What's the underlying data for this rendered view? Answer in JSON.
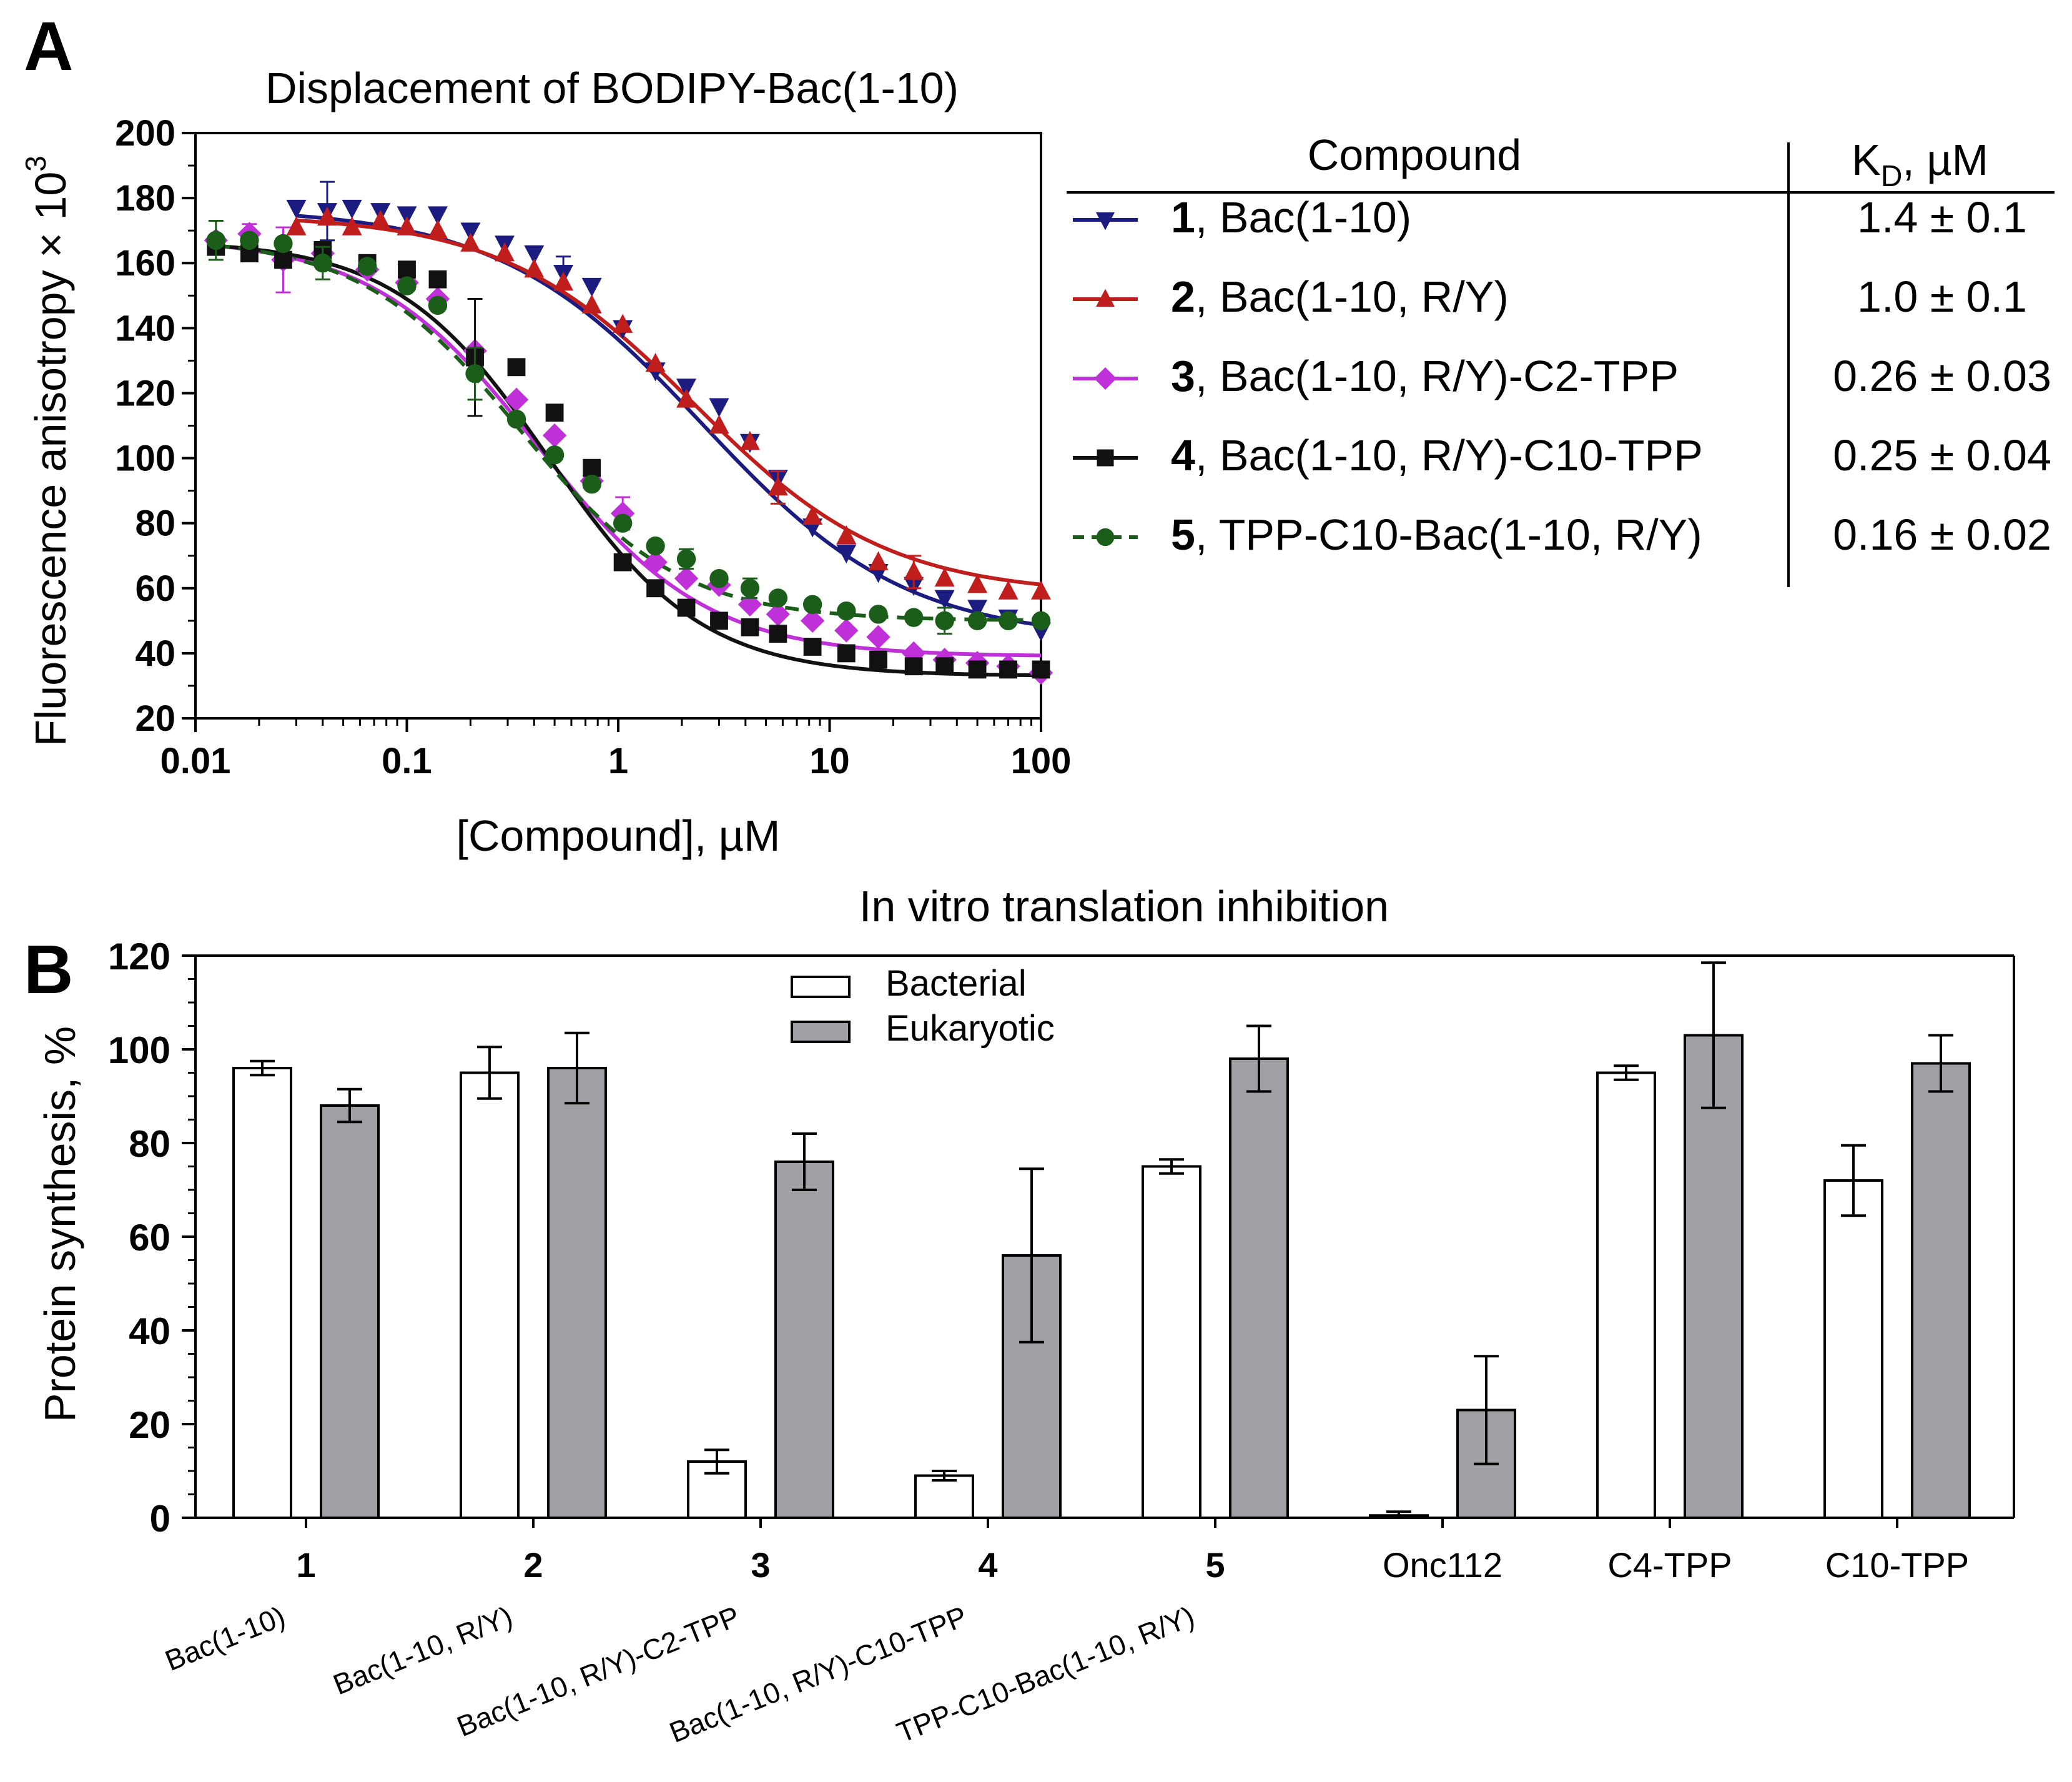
{
  "figure": {
    "panel_a_label": "A",
    "panel_b_label": "B",
    "table_header_compound": "Compound",
    "table_header_kd_main": "K",
    "table_header_kd_sub": "D",
    "table_header_kd_unit": ",  µM"
  },
  "chart_data": [
    {
      "type": "scatter",
      "title": "Displacement of BODIPY-Bac(1-10)",
      "xlabel": "[Compound], µM",
      "ylabel_main": "Fluorescence anisotropy × 10",
      "ylabel_exp": "3",
      "xscale": "log",
      "xlim": [
        0.01,
        100
      ],
      "ylim": [
        20,
        200
      ],
      "x_ticks": [
        0.01,
        0.1,
        1,
        10,
        100
      ],
      "x_tick_labels": [
        "0.01",
        "0.1",
        "1",
        "10",
        "100"
      ],
      "y_ticks": [
        20,
        40,
        60,
        80,
        100,
        120,
        140,
        160,
        180,
        200
      ],
      "y_tick_labels": [
        "20",
        "40",
        "60",
        "80",
        "100",
        "120",
        "140",
        "160",
        "180",
        "200"
      ],
      "series": [
        {
          "id": "1",
          "name": "Bac(1-10)",
          "kd": "1.4 ± 0.1",
          "color": "#1c1c80",
          "marker": "triangle-down",
          "line": "solid",
          "fit": {
            "top": 177,
            "bottom": 44,
            "ec50": 2.5,
            "hill": 0.9
          },
          "points": [
            [
              0.03,
              177,
              0
            ],
            [
              0.042,
              176,
              9
            ],
            [
              0.055,
              177,
              0
            ],
            [
              0.075,
              176,
              0
            ],
            [
              0.1,
              175,
              0
            ],
            [
              0.14,
              175,
              0
            ],
            [
              0.2,
              170,
              0
            ],
            [
              0.29,
              166,
              0
            ],
            [
              0.4,
              163,
              0
            ],
            [
              0.55,
              157,
              5
            ],
            [
              0.75,
              153,
              0
            ],
            [
              1.05,
              140,
              0
            ],
            [
              1.5,
              127,
              0
            ],
            [
              2.1,
              122,
              0
            ],
            [
              3,
              116,
              0
            ],
            [
              4.2,
              105,
              0
            ],
            [
              5.7,
              94,
              0
            ],
            [
              8.3,
              79,
              0
            ],
            [
              12,
              71,
              0
            ],
            [
              17,
              65,
              0
            ],
            [
              25,
              61,
              0
            ],
            [
              35,
              57,
              0
            ],
            [
              50,
              54,
              0
            ],
            [
              70,
              51,
              0
            ],
            [
              100,
              47,
              0
            ]
          ]
        },
        {
          "id": "2",
          "name": "Bac(1-10, R/Y)",
          "kd": "1.0 ± 0.1",
          "color": "#c01d1d",
          "marker": "triangle-up",
          "line": "solid",
          "fit": {
            "top": 175,
            "bottom": 58,
            "ec50": 2.3,
            "hill": 0.95
          },
          "points": [
            [
              0.03,
              171,
              0
            ],
            [
              0.042,
              174,
              0
            ],
            [
              0.055,
              171,
              0
            ],
            [
              0.075,
              173,
              0
            ],
            [
              0.1,
              171,
              0
            ],
            [
              0.14,
              170,
              0
            ],
            [
              0.2,
              166,
              0
            ],
            [
              0.29,
              163,
              0
            ],
            [
              0.4,
              158,
              0
            ],
            [
              0.55,
              154,
              0
            ],
            [
              0.75,
              147,
              0
            ],
            [
              1.05,
              141,
              0
            ],
            [
              1.5,
              129,
              0
            ],
            [
              2.1,
              118,
              0
            ],
            [
              3,
              110,
              0
            ],
            [
              4.2,
              105,
              0
            ],
            [
              5.7,
              91,
              5
            ],
            [
              8.3,
              82,
              0
            ],
            [
              12,
              76,
              0
            ],
            [
              17,
              68,
              0
            ],
            [
              25,
              65,
              5
            ],
            [
              35,
              63,
              0
            ],
            [
              50,
              61,
              0
            ],
            [
              70,
              59,
              0
            ],
            [
              100,
              59,
              0
            ]
          ]
        },
        {
          "id": "3",
          "name": "Bac(1-10, R/Y)-C2-TPP",
          "kd": "0.26 ± 0.03",
          "color": "#c030d8",
          "marker": "diamond",
          "line": "solid",
          "fit": {
            "top": 168,
            "bottom": 39,
            "ec50": 0.42,
            "hill": 1.1
          },
          "points": [
            [
              0.0125,
              167,
              0
            ],
            [
              0.018,
              169,
              3
            ],
            [
              0.026,
              161,
              10
            ],
            [
              0.04,
              163,
              0
            ],
            [
              0.065,
              158,
              0
            ],
            [
              0.1,
              154,
              0
            ],
            [
              0.14,
              149,
              0
            ],
            [
              0.21,
              133,
              0
            ],
            [
              0.33,
              118,
              0
            ],
            [
              0.5,
              107,
              0
            ],
            [
              0.75,
              93,
              0
            ],
            [
              1.05,
              83,
              5
            ],
            [
              1.5,
              68,
              0
            ],
            [
              2.1,
              63,
              0
            ],
            [
              3,
              61,
              0
            ],
            [
              4.2,
              55,
              0
            ],
            [
              5.7,
              52,
              0
            ],
            [
              8.3,
              50,
              0
            ],
            [
              12,
              47,
              0
            ],
            [
              17,
              45,
              0
            ],
            [
              25,
              40,
              0
            ],
            [
              35,
              38,
              0
            ],
            [
              50,
              37,
              0
            ],
            [
              70,
              36,
              0
            ],
            [
              100,
              34,
              0
            ]
          ]
        },
        {
          "id": "4",
          "name": "Bac(1-10, R/Y)-C10-TPP",
          "kd": "0.25 ± 0.04",
          "color": "#111111",
          "marker": "square",
          "line": "solid",
          "fit": {
            "top": 167,
            "bottom": 33,
            "ec50": 0.47,
            "hill": 1.2
          },
          "points": [
            [
              0.0125,
              165,
              0
            ],
            [
              0.018,
              163,
              0
            ],
            [
              0.026,
              161,
              0
            ],
            [
              0.04,
              164,
              0
            ],
            [
              0.065,
              160,
              0
            ],
            [
              0.1,
              158,
              0
            ],
            [
              0.14,
              155,
              0
            ],
            [
              0.21,
              131,
              18
            ],
            [
              0.33,
              128,
              0
            ],
            [
              0.5,
              114,
              0
            ],
            [
              0.75,
              97,
              0
            ],
            [
              1.05,
              68,
              0
            ],
            [
              1.5,
              60,
              0
            ],
            [
              2.1,
              54,
              0
            ],
            [
              3,
              50,
              0
            ],
            [
              4.2,
              48,
              0
            ],
            [
              5.7,
              46,
              0
            ],
            [
              8.3,
              42,
              0
            ],
            [
              12,
              40,
              0
            ],
            [
              17,
              38,
              0
            ],
            [
              25,
              36,
              0
            ],
            [
              35,
              36,
              0
            ],
            [
              50,
              35,
              0
            ],
            [
              70,
              35,
              0
            ],
            [
              100,
              35,
              0
            ]
          ]
        },
        {
          "id": "5",
          "name": "TPP-C10-Bac(1-10, R/Y)",
          "kd": "0.16 ± 0.02",
          "color": "#1a5e1a",
          "marker": "circle",
          "line": "dashed",
          "fit": {
            "top": 168,
            "bottom": 50,
            "ec50": 0.34,
            "hill": 1.15
          },
          "points": [
            [
              0.0125,
              167,
              6
            ],
            [
              0.018,
              167,
              0
            ],
            [
              0.026,
              166,
              0
            ],
            [
              0.04,
              160,
              5
            ],
            [
              0.065,
              159,
              0
            ],
            [
              0.1,
              153,
              0
            ],
            [
              0.14,
              147,
              0
            ],
            [
              0.21,
              126,
              8
            ],
            [
              0.33,
              112,
              0
            ],
            [
              0.5,
              101,
              0
            ],
            [
              0.75,
              92,
              0
            ],
            [
              1.05,
              80,
              0
            ],
            [
              1.5,
              73,
              0
            ],
            [
              2.1,
              69,
              3
            ],
            [
              3,
              63,
              0
            ],
            [
              4.2,
              60,
              3
            ],
            [
              5.7,
              57,
              0
            ],
            [
              8.3,
              55,
              0
            ],
            [
              12,
              53,
              0
            ],
            [
              17,
              52,
              0
            ],
            [
              25,
              51,
              0
            ],
            [
              35,
              50,
              4
            ],
            [
              50,
              50,
              0
            ],
            [
              70,
              50,
              0
            ],
            [
              100,
              50,
              0
            ]
          ]
        }
      ]
    },
    {
      "type": "bar",
      "title": "In vitro translation inhibition",
      "ylabel": "Protein synthesis, %",
      "ylim": [
        0,
        120
      ],
      "y_ticks": [
        0,
        20,
        40,
        60,
        80,
        100,
        120
      ],
      "y_tick_labels": [
        "0",
        "20",
        "40",
        "60",
        "80",
        "100",
        "120"
      ],
      "legend": [
        {
          "name": "Bacterial",
          "color": "#ffffff"
        },
        {
          "name": "Eukaryotic",
          "color": "#a0a0a4"
        }
      ],
      "categories": [
        {
          "label": "1",
          "bold": true,
          "sub": "Bac(1-10)"
        },
        {
          "label": "2",
          "bold": true,
          "sub": "Bac(1-10, R/Y)"
        },
        {
          "label": "3",
          "bold": true,
          "sub": "Bac(1-10, R/Y)-C2-TPP"
        },
        {
          "label": "4",
          "bold": true,
          "sub": "Bac(1-10, R/Y)-C10-TPP"
        },
        {
          "label": "5",
          "bold": true,
          "sub": "TPP-C10-Bac(1-10, R/Y)"
        },
        {
          "label": "Onc112",
          "bold": false,
          "sub": ""
        },
        {
          "label": "C4-TPP",
          "bold": false,
          "sub": ""
        },
        {
          "label": "C10-TPP",
          "bold": false,
          "sub": ""
        }
      ],
      "series": [
        {
          "name": "Bacterial",
          "values": [
            96,
            95,
            12,
            9,
            75,
            0.5,
            95,
            72
          ],
          "errors": [
            1.5,
            5.5,
            2.5,
            1,
            1.5,
            0.8,
            1.5,
            7.5
          ]
        },
        {
          "name": "Eukaryotic",
          "values": [
            88,
            96,
            76,
            56,
            98,
            23,
            103,
            97
          ],
          "errors": [
            3.5,
            7.5,
            6,
            18.5,
            7,
            11.5,
            15.5,
            6
          ]
        }
      ]
    }
  ]
}
